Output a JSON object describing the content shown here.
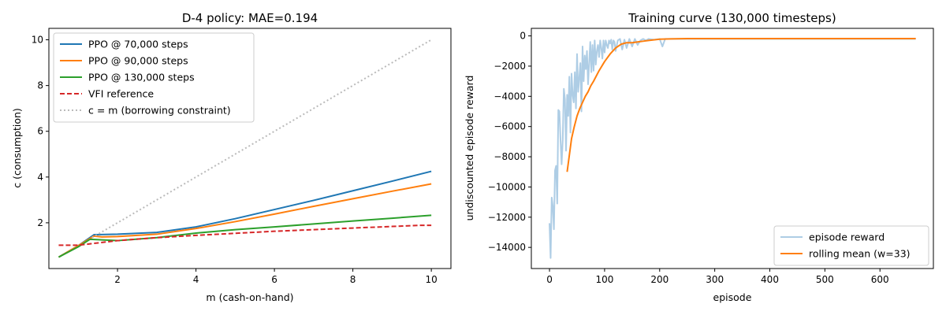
{
  "chart_data": [
    {
      "type": "line",
      "title": "D-4 policy: MAE=0.194",
      "xlabel": "m (cash-on-hand)",
      "ylabel": "c (consumption)",
      "xlim": [
        0.25,
        10.5
      ],
      "ylim": [
        0.0,
        10.5
      ],
      "xticks": [
        2,
        4,
        6,
        8,
        10
      ],
      "yticks": [
        2,
        4,
        6,
        8,
        10
      ],
      "grid": false,
      "legend_position": "upper-left",
      "series": [
        {
          "name": "PPO @ 70,000 steps",
          "color": "#1f77b4",
          "style": "solid",
          "x": [
            0.5,
            1.0,
            1.4,
            2.0,
            3.0,
            4.0,
            5.0,
            6.0,
            7.0,
            8.0,
            9.0,
            10.0
          ],
          "y": [
            0.5,
            1.0,
            1.48,
            1.5,
            1.58,
            1.82,
            2.18,
            2.58,
            2.98,
            3.4,
            3.82,
            4.25
          ]
        },
        {
          "name": "PPO @ 90,000 steps",
          "color": "#ff7f0e",
          "style": "solid",
          "x": [
            0.5,
            1.0,
            1.4,
            1.6,
            2.0,
            3.0,
            4.0,
            5.0,
            6.0,
            7.0,
            8.0,
            9.0,
            10.0
          ],
          "y": [
            0.5,
            1.0,
            1.42,
            1.38,
            1.4,
            1.5,
            1.75,
            2.05,
            2.38,
            2.72,
            3.05,
            3.38,
            3.7
          ]
        },
        {
          "name": "PPO @ 130,000 steps",
          "color": "#2ca02c",
          "style": "solid",
          "x": [
            0.5,
            1.0,
            1.3,
            2.0,
            3.0,
            4.0,
            5.0,
            6.0,
            7.0,
            8.0,
            9.0,
            10.0
          ],
          "y": [
            0.5,
            0.95,
            1.28,
            1.22,
            1.35,
            1.55,
            1.7,
            1.82,
            1.95,
            2.08,
            2.2,
            2.33
          ]
        },
        {
          "name": "VFI reference",
          "color": "#d62728",
          "style": "dashed",
          "x": [
            0.5,
            1.0,
            2.0,
            3.0,
            4.0,
            5.0,
            6.0,
            7.0,
            8.0,
            9.0,
            9.7,
            10.0
          ],
          "y": [
            1.02,
            1.02,
            1.22,
            1.35,
            1.45,
            1.54,
            1.63,
            1.7,
            1.77,
            1.84,
            1.89,
            1.89
          ]
        },
        {
          "name": "c = m (borrowing constraint)",
          "color": "#bbbbbb",
          "style": "dotted",
          "x": [
            1.35,
            10.0
          ],
          "y": [
            1.35,
            10.0
          ]
        }
      ]
    },
    {
      "type": "line",
      "title": "Training curve (130,000 timesteps)",
      "xlabel": "episode",
      "ylabel": "undiscounted episode reward",
      "xlim": [
        -33,
        697
      ],
      "ylim": [
        -15400,
        500
      ],
      "xticks": [
        0,
        100,
        200,
        300,
        400,
        500,
        600
      ],
      "yticks": [
        0,
        -2000,
        -4000,
        -6000,
        -8000,
        -10000,
        -12000,
        -14000
      ],
      "tick_labels_y": [
        "0",
        "−2000",
        "−4000",
        "−6000",
        "−8000",
        "−10000",
        "−12000",
        "−14000"
      ],
      "grid": false,
      "legend_position": "lower-right",
      "series": [
        {
          "name": "episode reward",
          "color": "#aecde5",
          "style": "solid",
          "x": [
            0,
            2,
            4,
            6,
            8,
            10,
            12,
            14,
            16,
            18,
            20,
            22,
            24,
            26,
            28,
            30,
            32,
            34,
            36,
            38,
            40,
            42,
            44,
            46,
            48,
            50,
            52,
            54,
            56,
            58,
            60,
            62,
            64,
            66,
            68,
            70,
            72,
            74,
            76,
            78,
            80,
            82,
            84,
            86,
            88,
            90,
            92,
            94,
            96,
            98,
            100,
            102,
            104,
            106,
            108,
            110,
            112,
            114,
            116,
            118,
            120,
            124,
            128,
            132,
            136,
            140,
            145,
            150,
            155,
            160,
            165,
            170,
            175,
            180,
            190,
            200,
            205,
            210,
            220,
            240,
            300,
            400,
            500,
            600,
            665
          ],
          "y": [
            -12400,
            -14700,
            -10700,
            -11300,
            -12800,
            -8900,
            -8600,
            -11100,
            -4900,
            -5000,
            -6900,
            -8500,
            -6900,
            -3500,
            -4200,
            -7600,
            -3900,
            -5300,
            -2700,
            -6400,
            -2500,
            -3900,
            -4400,
            -2400,
            -4800,
            -1200,
            -3700,
            -2800,
            -1800,
            -5000,
            -700,
            -3000,
            -1300,
            -2200,
            -1000,
            -3200,
            -1800,
            -400,
            -2400,
            -600,
            -2300,
            -300,
            -1900,
            -1000,
            -600,
            -1400,
            -300,
            -800,
            -1500,
            -300,
            -1100,
            -300,
            -600,
            -800,
            -300,
            -500,
            -250,
            -900,
            -300,
            -400,
            -1000,
            -300,
            -200,
            -900,
            -250,
            -800,
            -200,
            -700,
            -200,
            -600,
            -300,
            -200,
            -300,
            -200,
            -250,
            -200,
            -700,
            -200,
            -200,
            -200,
            -200,
            -200,
            -200,
            -200,
            -200
          ]
        },
        {
          "name": "rolling mean (w=33)",
          "color": "#ff7f0e",
          "style": "solid",
          "x": [
            32,
            36,
            40,
            45,
            50,
            55,
            60,
            65,
            70,
            75,
            80,
            90,
            100,
            110,
            120,
            130,
            140,
            150,
            160,
            170,
            180,
            200,
            220,
            250,
            300,
            400,
            500,
            600,
            665
          ],
          "y": [
            -9000,
            -7900,
            -6800,
            -6000,
            -5300,
            -4800,
            -4400,
            -4000,
            -3700,
            -3300,
            -3000,
            -2300,
            -1700,
            -1200,
            -800,
            -550,
            -450,
            -450,
            -400,
            -350,
            -300,
            -220,
            -200,
            -180,
            -180,
            -180,
            -180,
            -180,
            -180
          ]
        }
      ]
    }
  ]
}
